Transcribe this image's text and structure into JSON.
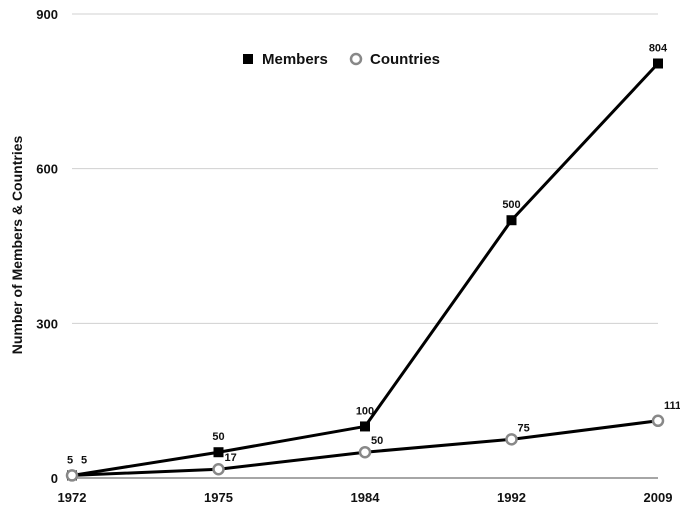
{
  "chart_data": {
    "type": "line",
    "x": [
      "1972",
      "1975",
      "1984",
      "1992",
      "2009"
    ],
    "series": [
      {
        "name": "Members",
        "values": [
          5,
          50,
          100,
          500,
          804
        ],
        "labels": [
          "5",
          "50",
          "100",
          "500",
          "804"
        ],
        "color": "#000000",
        "marker": "square"
      },
      {
        "name": "Countries",
        "values": [
          5,
          17,
          50,
          75,
          111
        ],
        "labels": [
          "5",
          "17",
          "50",
          "75",
          "111"
        ],
        "color": "#888888",
        "marker": "circle"
      }
    ],
    "ylabel": "Number of Members & Countries",
    "ylim": [
      0,
      900
    ],
    "yticks": [
      "0",
      "300",
      "600",
      "900"
    ],
    "grid": true,
    "legend_position": "top-center"
  }
}
